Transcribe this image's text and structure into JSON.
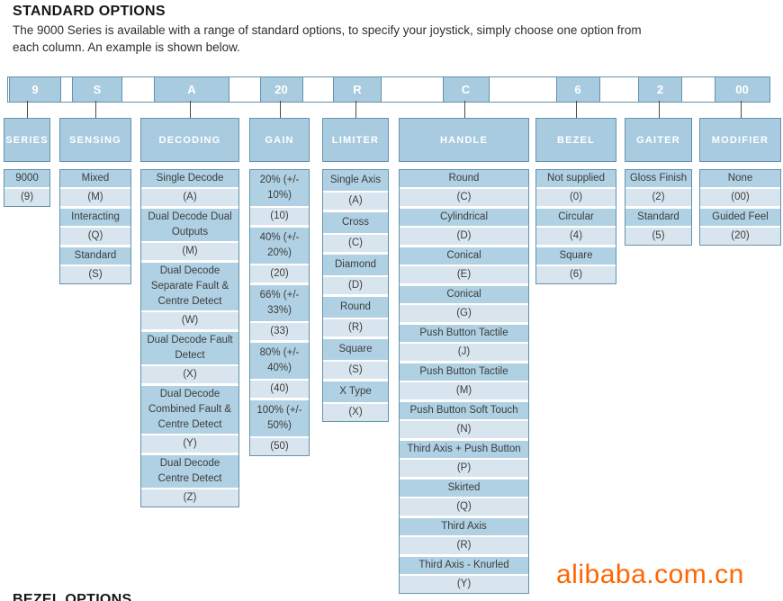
{
  "page": {
    "title": "STANDARD OPTIONS",
    "intro_line1": "The 9000 Series is available with a range of standard options, to specify your joystick, simply choose one option from",
    "intro_line2": "each column. An example is shown below.",
    "bottom_heading": "BEZEL OPTIONS",
    "watermark": "alibaba.com.cn"
  },
  "colors": {
    "cell_border": "#6493ad",
    "header_fill": "#a9cbdf",
    "label_fill": "#afd1e3",
    "code_fill": "#d9e5ee",
    "header_text": "#ffffff",
    "body_text": "#3d3d3d",
    "watermark": "#ff6600"
  },
  "example_code": [
    "9",
    "S",
    "A",
    "20",
    "R",
    "C",
    "6",
    "2",
    "00"
  ],
  "columns": [
    {
      "header": "SERIES",
      "code": "9",
      "options": [
        {
          "label": "9000",
          "code": "(9)"
        }
      ]
    },
    {
      "header": "SENSING",
      "code": "S",
      "options": [
        {
          "label": "Mixed",
          "code": "(M)"
        },
        {
          "label": "Interacting",
          "code": "(Q)"
        },
        {
          "label": "Standard",
          "code": "(S)"
        }
      ]
    },
    {
      "header": "DECODING",
      "code": "A",
      "options": [
        {
          "label": "Single Decode",
          "code": "(A)"
        },
        {
          "label": "Dual Decode Dual Outputs",
          "code": "(M)"
        },
        {
          "label": "Dual Decode Separate Fault & Centre Detect",
          "code": "(W)"
        },
        {
          "label": "Dual Decode Fault Detect",
          "code": "(X)"
        },
        {
          "label": "Dual Decode Combined Fault & Centre Detect",
          "code": "(Y)"
        },
        {
          "label": "Dual Decode Centre Detect",
          "code": "(Z)"
        }
      ]
    },
    {
      "header": "GAIN",
      "code": "20",
      "options": [
        {
          "label": "20% (+/- 10%)",
          "code": "(10)"
        },
        {
          "label": "40% (+/- 20%)",
          "code": "(20)"
        },
        {
          "label": "66% (+/- 33%)",
          "code": "(33)"
        },
        {
          "label": "80% (+/- 40%)",
          "code": "(40)"
        },
        {
          "label": "100% (+/- 50%)",
          "code": "(50)"
        }
      ]
    },
    {
      "header": "LIMITER",
      "code": "R",
      "options": [
        {
          "label": "Single Axis",
          "code": "(A)"
        },
        {
          "label": "Cross",
          "code": "(C)"
        },
        {
          "label": "Diamond",
          "code": "(D)"
        },
        {
          "label": "Round",
          "code": "(R)"
        },
        {
          "label": "Square",
          "code": "(S)"
        },
        {
          "label": "X Type",
          "code": "(X)"
        }
      ]
    },
    {
      "header": "HANDLE",
      "code": "C",
      "options": [
        {
          "label": "Round",
          "code": "(C)"
        },
        {
          "label": "Cylindrical",
          "code": "(D)"
        },
        {
          "label": "Conical",
          "code": "(E)"
        },
        {
          "label": "Conical",
          "code": "(G)"
        },
        {
          "label": "Push Button Tactile",
          "code": "(J)"
        },
        {
          "label": "Push Button Tactile",
          "code": "(M)"
        },
        {
          "label": "Push Button Soft Touch",
          "code": "(N)"
        },
        {
          "label": "Third Axis + Push Button",
          "code": "(P)"
        },
        {
          "label": "Skirted",
          "code": "(Q)"
        },
        {
          "label": "Third Axis",
          "code": "(R)"
        },
        {
          "label": "Third Axis - Knurled",
          "code": "(Y)"
        }
      ]
    },
    {
      "header": "BEZEL",
      "code": "6",
      "options": [
        {
          "label": "Not supplied",
          "code": "(0)"
        },
        {
          "label": "Circular",
          "code": "(4)"
        },
        {
          "label": "Square",
          "code": "(6)"
        }
      ]
    },
    {
      "header": "GAITER",
      "code": "2",
      "options": [
        {
          "label": "Gloss Finish",
          "code": "(2)"
        },
        {
          "label": "Standard",
          "code": "(5)"
        }
      ]
    },
    {
      "header": "MODIFIER",
      "code": "00",
      "options": [
        {
          "label": "None",
          "code": "(00)"
        },
        {
          "label": "Guided Feel",
          "code": "(20)"
        }
      ]
    }
  ]
}
